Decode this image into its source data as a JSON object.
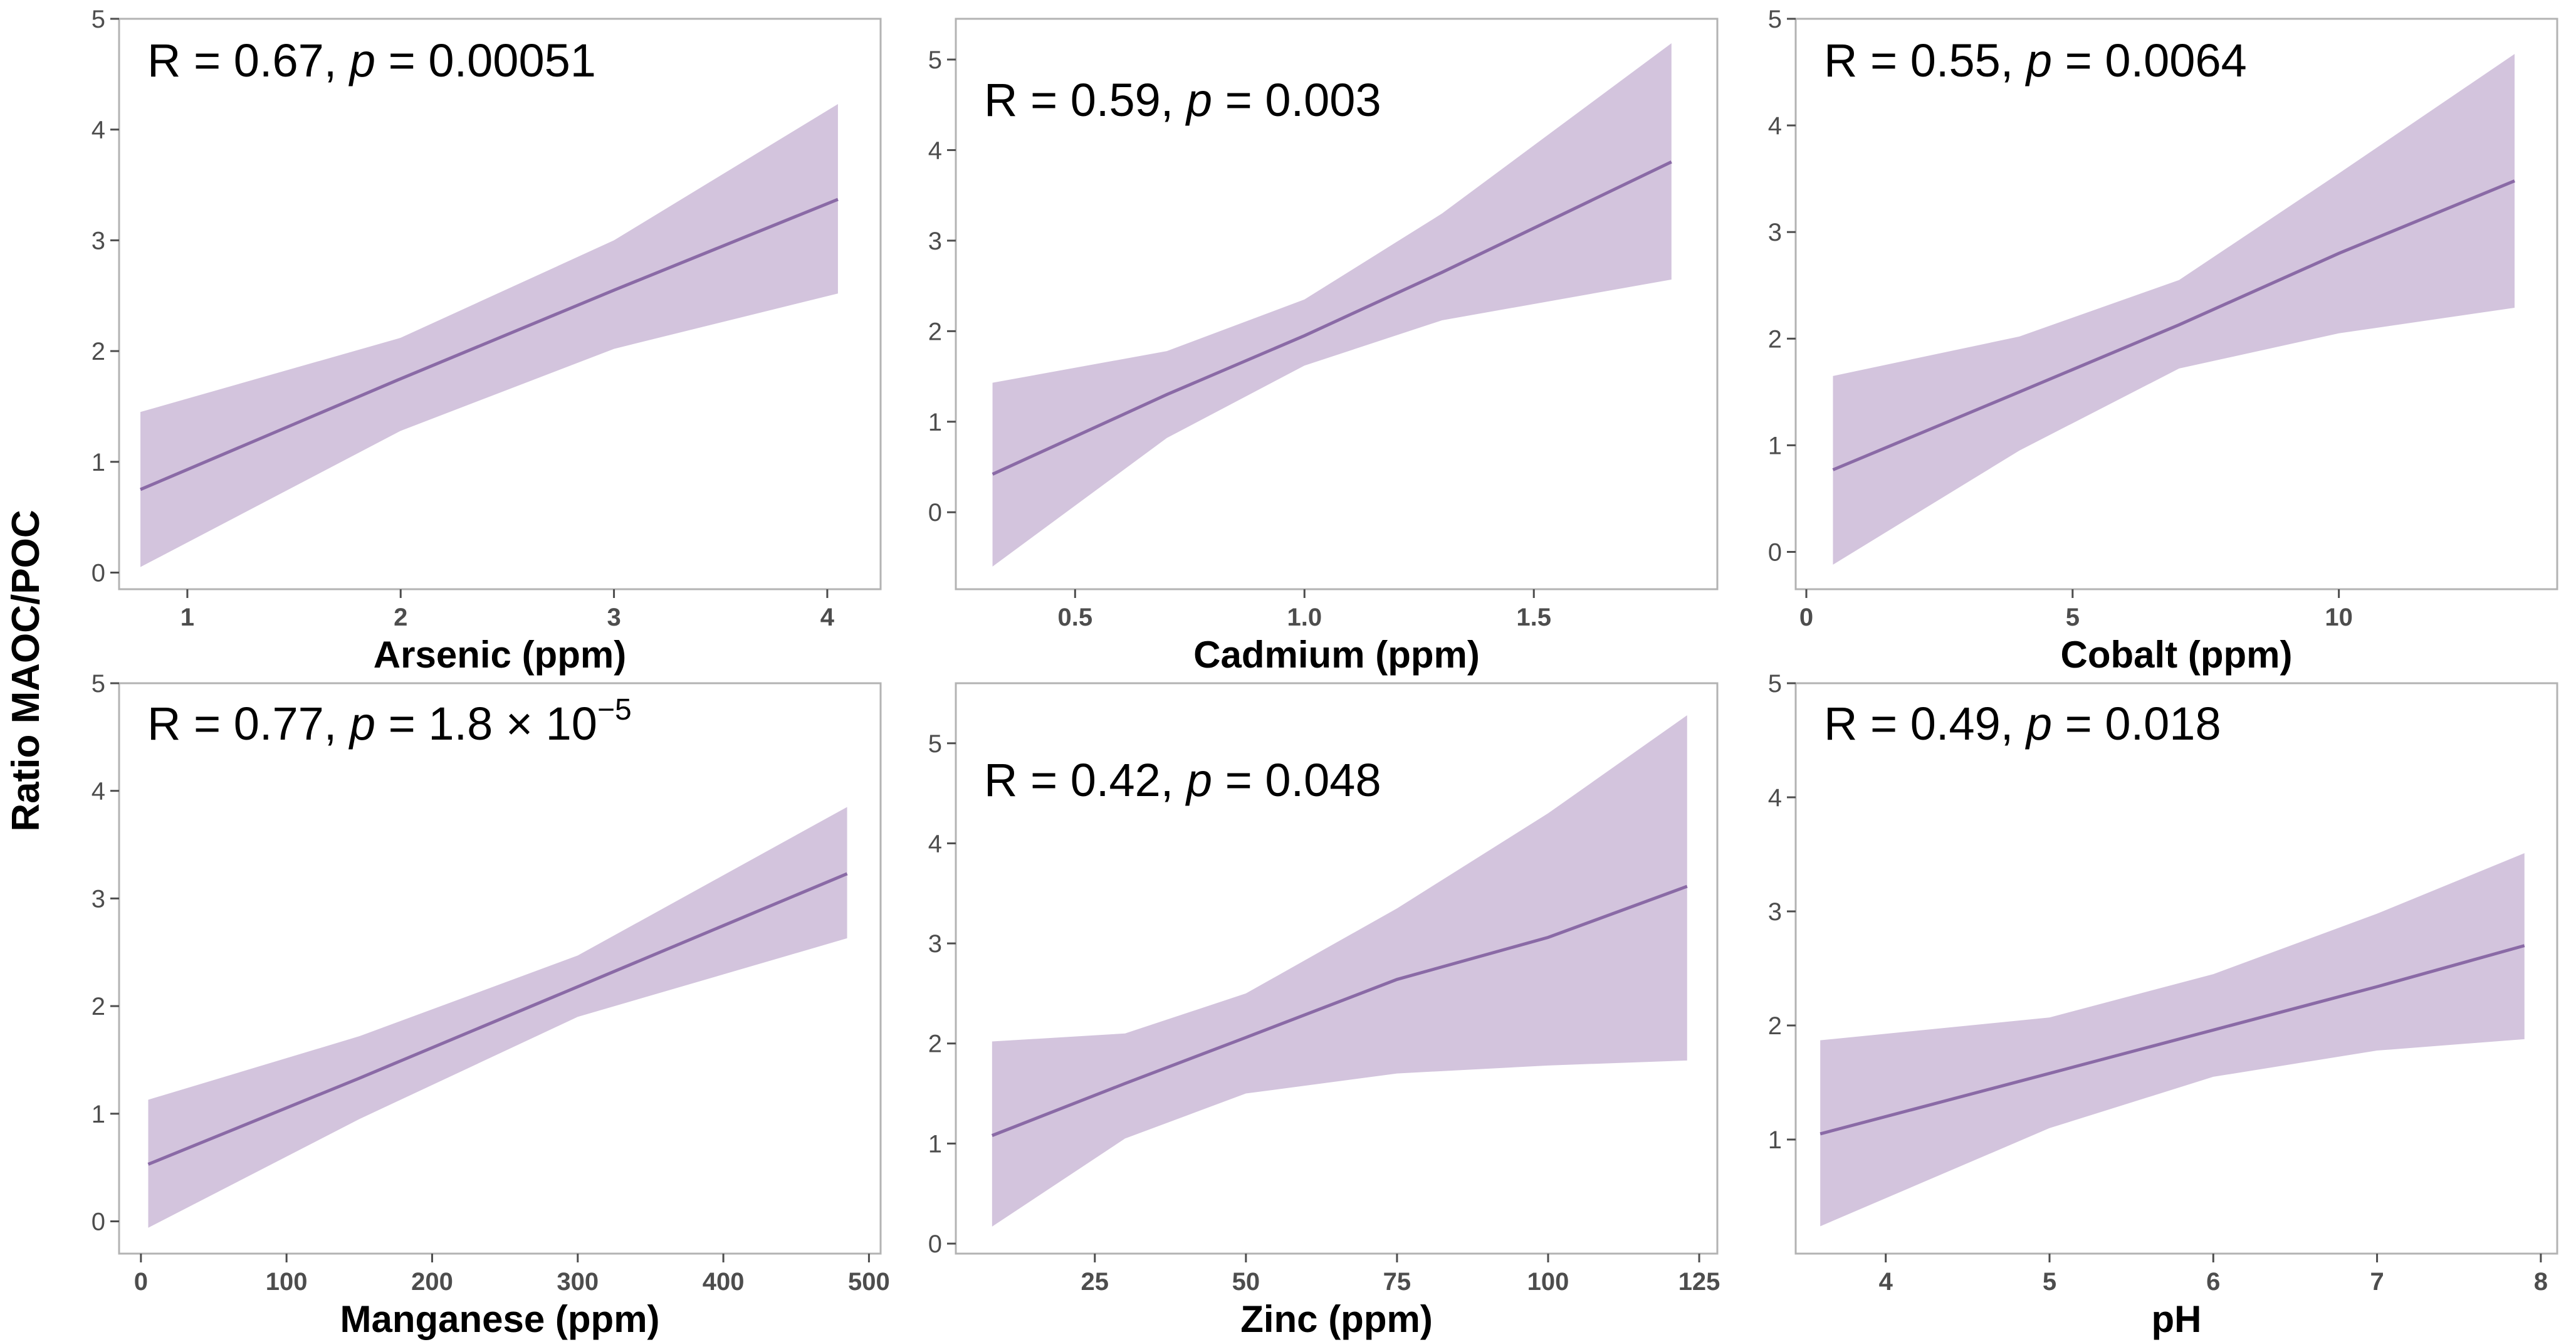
{
  "figure": {
    "ylabel": "Ratio MAOC/POC",
    "colors": {
      "band": "#d3c4dd",
      "line": "#8a6aa6",
      "frame": "#b3b3b3",
      "tick_text": "#4d4d4d"
    }
  },
  "chart_data": [
    {
      "type": "line",
      "xlabel": "Arsenic (ppm)",
      "ylabel": "Ratio MAOC/POC",
      "annotation": {
        "r": "R = 0.67, ",
        "p_label": "p",
        "p_value": " = 0.00051",
        "p_exp": ""
      },
      "xlim": [
        0.68,
        4.25
      ],
      "ylim": [
        -0.15,
        5.0
      ],
      "xticks": [
        1,
        2,
        3,
        4
      ],
      "yticks": [
        0,
        1,
        2,
        3,
        4,
        5
      ],
      "series": [
        {
          "x": [
            0.78,
            2.0,
            3.0,
            4.05
          ],
          "y": [
            0.75,
            1.75,
            2.55,
            3.37
          ],
          "lower": [
            0.05,
            1.28,
            2.02,
            2.52
          ],
          "upper": [
            1.45,
            2.12,
            3.0,
            4.23
          ]
        }
      ]
    },
    {
      "type": "line",
      "xlabel": "Cadmium (ppm)",
      "ylabel": "",
      "annotation": {
        "r": "R = 0.59, ",
        "p_label": "p",
        "p_value": " = 0.003",
        "p_exp": ""
      },
      "xlim": [
        0.24,
        1.9
      ],
      "ylim": [
        -0.85,
        5.45
      ],
      "xticks": [
        0.5,
        1.0,
        1.5
      ],
      "yticks": [
        0,
        1,
        2,
        3,
        4,
        5
      ],
      "series": [
        {
          "x": [
            0.32,
            0.7,
            1.0,
            1.3,
            1.8
          ],
          "y": [
            0.42,
            1.3,
            1.95,
            2.65,
            3.87
          ],
          "lower": [
            -0.6,
            0.82,
            1.62,
            2.12,
            2.57
          ],
          "upper": [
            1.43,
            1.78,
            2.35,
            3.3,
            5.18
          ]
        }
      ]
    },
    {
      "type": "line",
      "xlabel": "Cobalt (ppm)",
      "ylabel": "",
      "annotation": {
        "r": "R = 0.55, ",
        "p_label": "p",
        "p_value": " = 0.0064",
        "p_exp": ""
      },
      "xlim": [
        -0.2,
        14.1
      ],
      "ylim": [
        -0.35,
        5.0
      ],
      "xticks": [
        0,
        5,
        10
      ],
      "yticks": [
        0,
        1,
        2,
        3,
        4,
        5
      ],
      "series": [
        {
          "x": [
            0.5,
            4.0,
            7.0,
            10.0,
            13.3
          ],
          "y": [
            0.77,
            1.5,
            2.13,
            2.8,
            3.48
          ],
          "lower": [
            -0.12,
            0.95,
            1.72,
            2.05,
            2.29
          ],
          "upper": [
            1.65,
            2.02,
            2.55,
            3.55,
            4.67
          ]
        }
      ]
    },
    {
      "type": "line",
      "xlabel": "Manganese (ppm)",
      "ylabel": "",
      "annotation": {
        "r": "R = 0.77, ",
        "p_label": "p",
        "p_value": " = 1.8 × 10",
        "p_exp": "−5"
      },
      "xlim": [
        -15,
        508
      ],
      "ylim": [
        -0.3,
        5.0
      ],
      "xticks": [
        0,
        100,
        200,
        300,
        400,
        500
      ],
      "yticks": [
        0,
        1,
        2,
        3,
        4,
        5
      ],
      "series": [
        {
          "x": [
            5,
            150,
            300,
            485
          ],
          "y": [
            0.53,
            1.33,
            2.18,
            3.23
          ],
          "lower": [
            -0.06,
            0.95,
            1.9,
            2.63
          ],
          "upper": [
            1.13,
            1.72,
            2.47,
            3.85
          ]
        }
      ]
    },
    {
      "type": "line",
      "xlabel": "Zinc (ppm)",
      "ylabel": "",
      "annotation": {
        "r": "R = 0.42, ",
        "p_label": "p",
        "p_value": " = 0.048",
        "p_exp": ""
      },
      "xlim": [
        2,
        128
      ],
      "ylim": [
        -0.1,
        5.6
      ],
      "xticks": [
        25,
        50,
        75,
        100,
        125
      ],
      "yticks": [
        0,
        1,
        2,
        3,
        4,
        5
      ],
      "series": [
        {
          "x": [
            8,
            30,
            50,
            75,
            100,
            123
          ],
          "y": [
            1.08,
            1.6,
            2.06,
            2.64,
            3.06,
            3.57
          ],
          "lower": [
            0.17,
            1.05,
            1.5,
            1.7,
            1.78,
            1.83
          ],
          "upper": [
            2.02,
            2.1,
            2.5,
            3.35,
            4.3,
            5.28
          ]
        }
      ]
    },
    {
      "type": "line",
      "xlabel": "pH",
      "ylabel": "",
      "annotation": {
        "r": "R = 0.49, ",
        "p_label": "p",
        "p_value": " = 0.018",
        "p_exp": ""
      },
      "xlim": [
        3.45,
        8.1
      ],
      "ylim": [
        0.0,
        5.0
      ],
      "xticks": [
        4,
        5,
        6,
        7,
        8
      ],
      "yticks": [
        1,
        2,
        3,
        4,
        5
      ],
      "series": [
        {
          "x": [
            3.6,
            5.0,
            6.0,
            7.0,
            7.9
          ],
          "y": [
            1.05,
            1.58,
            1.96,
            2.34,
            2.7
          ],
          "lower": [
            0.24,
            1.1,
            1.55,
            1.78,
            1.88
          ],
          "upper": [
            1.87,
            2.07,
            2.45,
            2.98,
            3.51
          ]
        }
      ]
    }
  ]
}
